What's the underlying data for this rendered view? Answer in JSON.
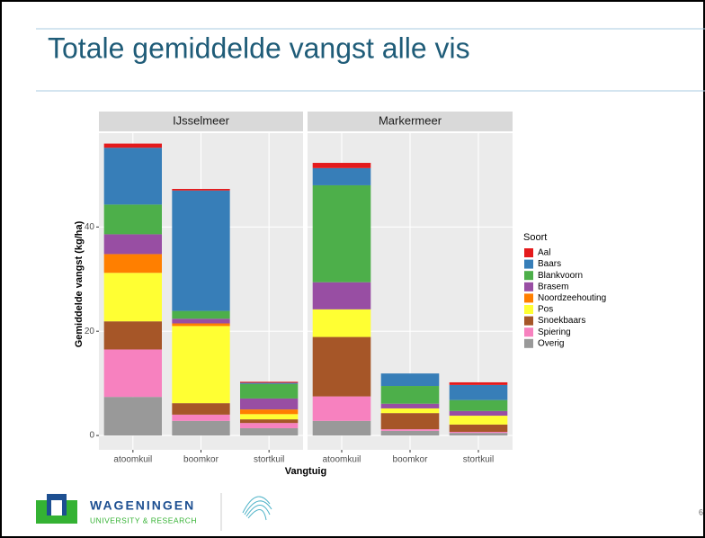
{
  "slide": {
    "title": "Totale gemiddelde vangst alle vis",
    "logo_name": "WAGENINGEN",
    "logo_sub": "UNIVERSITY & RESEARCH",
    "page": "6"
  },
  "chart_data": [
    {
      "type": "bar",
      "stacked": true,
      "title": "IJsselmeer",
      "ylabel": "Gemiddelde vangst (kg/ha)",
      "xlabel": "Vangtuig",
      "legend_title": "Soort",
      "legend": "right",
      "grid": true,
      "ylim": [
        -2.75,
        58
      ],
      "yticks": [
        0,
        20,
        40
      ],
      "categories": [
        "atoomkuil",
        "boomkor",
        "stortkuil"
      ],
      "series": [
        {
          "name": "Aal",
          "color": "#e41a1c",
          "values": [
            0.8,
            0.3,
            0.2
          ]
        },
        {
          "name": "Baars",
          "color": "#377eb8",
          "values": [
            10.9,
            23.1,
            0.2
          ]
        },
        {
          "name": "Blankvoorn",
          "color": "#4daf4a",
          "values": [
            5.7,
            1.5,
            2.8
          ]
        },
        {
          "name": "Brasem",
          "color": "#984ea3",
          "values": [
            3.8,
            0.9,
            2.1
          ]
        },
        {
          "name": "Noordzeehouting",
          "color": "#ff7f00",
          "values": [
            3.6,
            0.5,
            0.9
          ]
        },
        {
          "name": "Pos",
          "color": "#ffff33",
          "values": [
            9.3,
            14.8,
            1.0
          ]
        },
        {
          "name": "Snoekbaars",
          "color": "#a65628",
          "values": [
            5.4,
            2.2,
            0.7
          ]
        },
        {
          "name": "Spiering",
          "color": "#f781bf",
          "values": [
            9.1,
            1.2,
            1.0
          ]
        },
        {
          "name": "Overig",
          "color": "#999999",
          "values": [
            7.4,
            2.8,
            1.4
          ]
        }
      ]
    },
    {
      "type": "bar",
      "stacked": true,
      "title": "Markermeer",
      "grid": true,
      "ylim": [
        -2.75,
        58
      ],
      "categories": [
        "atoomkuil",
        "boomkor",
        "stortkuil"
      ],
      "series": [
        {
          "name": "Aal",
          "color": "#e41a1c",
          "values": [
            1.0,
            0,
            0.5
          ]
        },
        {
          "name": "Baars",
          "color": "#377eb8",
          "values": [
            3.3,
            2.4,
            2.9
          ]
        },
        {
          "name": "Blankvoorn",
          "color": "#4daf4a",
          "values": [
            18.6,
            3.4,
            2.1
          ]
        },
        {
          "name": "Brasem",
          "color": "#984ea3",
          "values": [
            5.2,
            0.9,
            0.9
          ]
        },
        {
          "name": "Noordzeehouting",
          "color": "#ff7f00",
          "values": [
            0,
            0,
            0
          ]
        },
        {
          "name": "Pos",
          "color": "#ffff33",
          "values": [
            5.3,
            0.9,
            1.7
          ]
        },
        {
          "name": "Snoekbaars",
          "color": "#a65628",
          "values": [
            11.4,
            3.1,
            1.4
          ]
        },
        {
          "name": "Spiering",
          "color": "#f781bf",
          "values": [
            4.7,
            0.3,
            0.2
          ]
        },
        {
          "name": "Overig",
          "color": "#999999",
          "values": [
            2.8,
            0.9,
            0.5
          ]
        }
      ]
    }
  ]
}
